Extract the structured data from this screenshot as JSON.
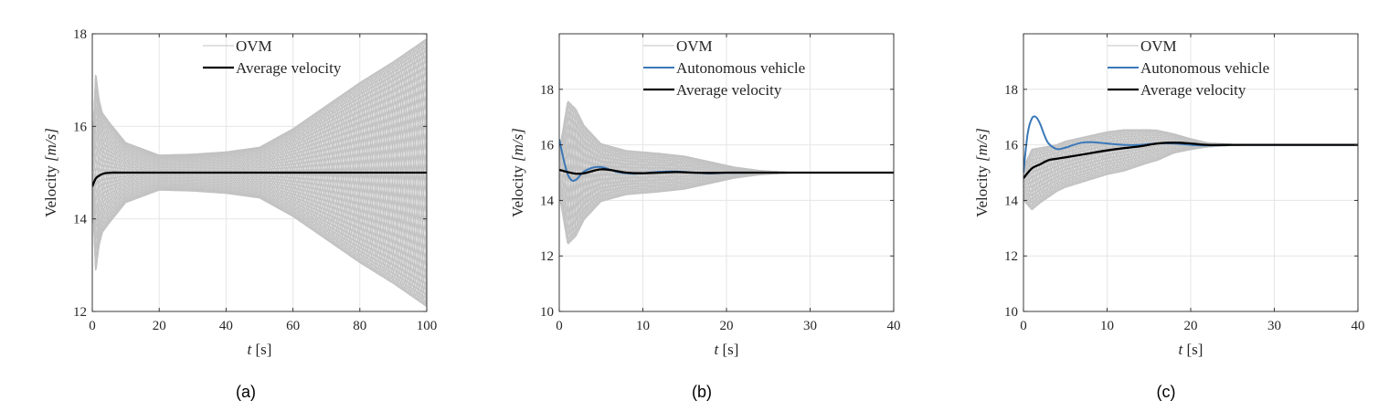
{
  "colors": {
    "ovm": "#c2c2c2",
    "autonomous": "#3a78b8",
    "average": "#000000",
    "grid": "#e6e6e6",
    "axis": "#262626"
  },
  "chart_data": [
    {
      "type": "line",
      "caption": "(a)",
      "xlabel_var": "t",
      "xlabel_unit": "[s]",
      "ylabel_prefix": "Velocity",
      "ylabel_unit": "[m/s]",
      "xlim": [
        0,
        100
      ],
      "ylim": [
        12,
        18
      ],
      "xticks": [
        0,
        20,
        40,
        60,
        80,
        100
      ],
      "yticks": [
        12,
        14,
        16,
        18
      ],
      "grid": true,
      "legend_position": "top-right",
      "ovm": {
        "name": "OVM",
        "count": 40,
        "envelope_t": [
          0,
          1,
          2,
          3,
          5,
          10,
          20,
          30,
          40,
          50,
          60,
          70,
          80,
          90,
          100
        ],
        "envelope_amp": [
          0.4,
          2.2,
          1.6,
          1.3,
          1.1,
          0.65,
          0.38,
          0.4,
          0.45,
          0.55,
          0.95,
          1.45,
          1.95,
          2.4,
          2.9
        ],
        "period": 18,
        "center": 15.0
      },
      "average": {
        "name": "Average velocity",
        "t": [
          0,
          1,
          2,
          3,
          4,
          6,
          8,
          10,
          15,
          20,
          30,
          40,
          50,
          60,
          70,
          80,
          90,
          100
        ],
        "v": [
          14.7,
          14.87,
          14.93,
          14.97,
          14.99,
          15.0,
          15.0,
          15.0,
          15.0,
          15.0,
          15.0,
          15.0,
          15.0,
          15.0,
          15.0,
          15.0,
          15.0,
          15.0
        ]
      }
    },
    {
      "type": "line",
      "caption": "(b)",
      "xlabel_var": "t",
      "xlabel_unit": "[s]",
      "ylabel_prefix": "Velocity",
      "ylabel_unit": "[m/s]",
      "xlim": [
        0,
        40
      ],
      "ylim": [
        10,
        20
      ],
      "xticks": [
        0,
        10,
        20,
        30,
        40
      ],
      "yticks": [
        10,
        12,
        14,
        16,
        18
      ],
      "grid": true,
      "legend_position": "top-right",
      "ovm": {
        "name": "OVM",
        "count": 20,
        "envelope_t": [
          0,
          1,
          2,
          3,
          5,
          8,
          12,
          15,
          18,
          21,
          24,
          27,
          30,
          40
        ],
        "envelope_amp": [
          0.8,
          2.6,
          2.3,
          1.7,
          1.05,
          0.8,
          0.7,
          0.6,
          0.4,
          0.2,
          0.08,
          0.02,
          0.0,
          0.0
        ],
        "period": 3.2,
        "center": 15.0
      },
      "autonomous": {
        "name": "Autonomous vehicle",
        "t": [
          0,
          0.5,
          1,
          1.5,
          2,
          2.5,
          3,
          4,
          5,
          6,
          7,
          8,
          9,
          10,
          12,
          14,
          16,
          18,
          20,
          24,
          30,
          40
        ],
        "v": [
          16.2,
          15.5,
          14.95,
          14.72,
          14.74,
          14.9,
          15.05,
          15.18,
          15.2,
          15.12,
          15.02,
          14.98,
          14.96,
          14.98,
          15.03,
          15.04,
          15.0,
          14.97,
          14.99,
          15.0,
          15.0,
          15.0
        ]
      },
      "average": {
        "name": "Average velocity",
        "t": [
          0,
          1,
          2,
          3,
          4,
          5,
          6,
          7,
          8,
          10,
          12,
          14,
          16,
          18,
          20,
          25,
          30,
          40
        ],
        "v": [
          15.1,
          15.02,
          14.96,
          14.98,
          15.06,
          15.12,
          15.1,
          15.05,
          15.0,
          14.98,
          15.0,
          15.02,
          15.0,
          14.99,
          15.0,
          15.0,
          15.0,
          15.0
        ]
      }
    },
    {
      "type": "line",
      "caption": "(c)",
      "xlabel_var": "t",
      "xlabel_unit": "[s]",
      "ylabel_prefix": "Velocity",
      "ylabel_unit": "[m/s]",
      "xlim": [
        0,
        40
      ],
      "ylim": [
        10,
        20
      ],
      "xticks": [
        0,
        10,
        20,
        30,
        40
      ],
      "yticks": [
        10,
        12,
        14,
        16,
        18
      ],
      "grid": true,
      "legend_position": "top-right",
      "ovm": {
        "name": "OVM",
        "count": 20,
        "envelope_t": [
          0,
          1,
          2,
          4,
          8,
          12,
          16,
          18,
          20,
          22,
          25,
          30,
          40
        ],
        "envelope_amp": [
          0.6,
          1.1,
          1.0,
          0.85,
          0.8,
          0.75,
          0.55,
          0.35,
          0.2,
          0.08,
          0.02,
          0.0,
          0.0
        ],
        "period": 3.5,
        "center_t": [
          0,
          2,
          5,
          10,
          15,
          18,
          22,
          30,
          40
        ],
        "center_v": [
          14.6,
          14.9,
          15.3,
          15.7,
          15.95,
          16.05,
          16.0,
          16.0,
          16.0
        ]
      },
      "autonomous": {
        "name": "Autonomous vehicle",
        "t": [
          0,
          0.5,
          1,
          1.5,
          2,
          2.5,
          3,
          4,
          5,
          6,
          7,
          8,
          9,
          10,
          12,
          14,
          16,
          18,
          20,
          22,
          25,
          30,
          40
        ],
        "v": [
          15.0,
          16.4,
          16.95,
          17.0,
          16.75,
          16.35,
          16.05,
          15.85,
          15.9,
          16.0,
          16.08,
          16.1,
          16.08,
          16.05,
          16.0,
          16.0,
          16.05,
          16.05,
          16.0,
          15.98,
          16.0,
          16.0,
          16.0
        ]
      },
      "average": {
        "name": "Average velocity",
        "t": [
          0,
          1,
          2,
          3,
          4,
          6,
          8,
          10,
          12,
          14,
          16,
          18,
          20,
          22,
          25,
          30,
          40
        ],
        "v": [
          14.8,
          15.15,
          15.3,
          15.45,
          15.5,
          15.6,
          15.7,
          15.8,
          15.88,
          15.95,
          16.05,
          16.08,
          16.05,
          16.0,
          16.0,
          16.0,
          16.0
        ]
      }
    }
  ]
}
